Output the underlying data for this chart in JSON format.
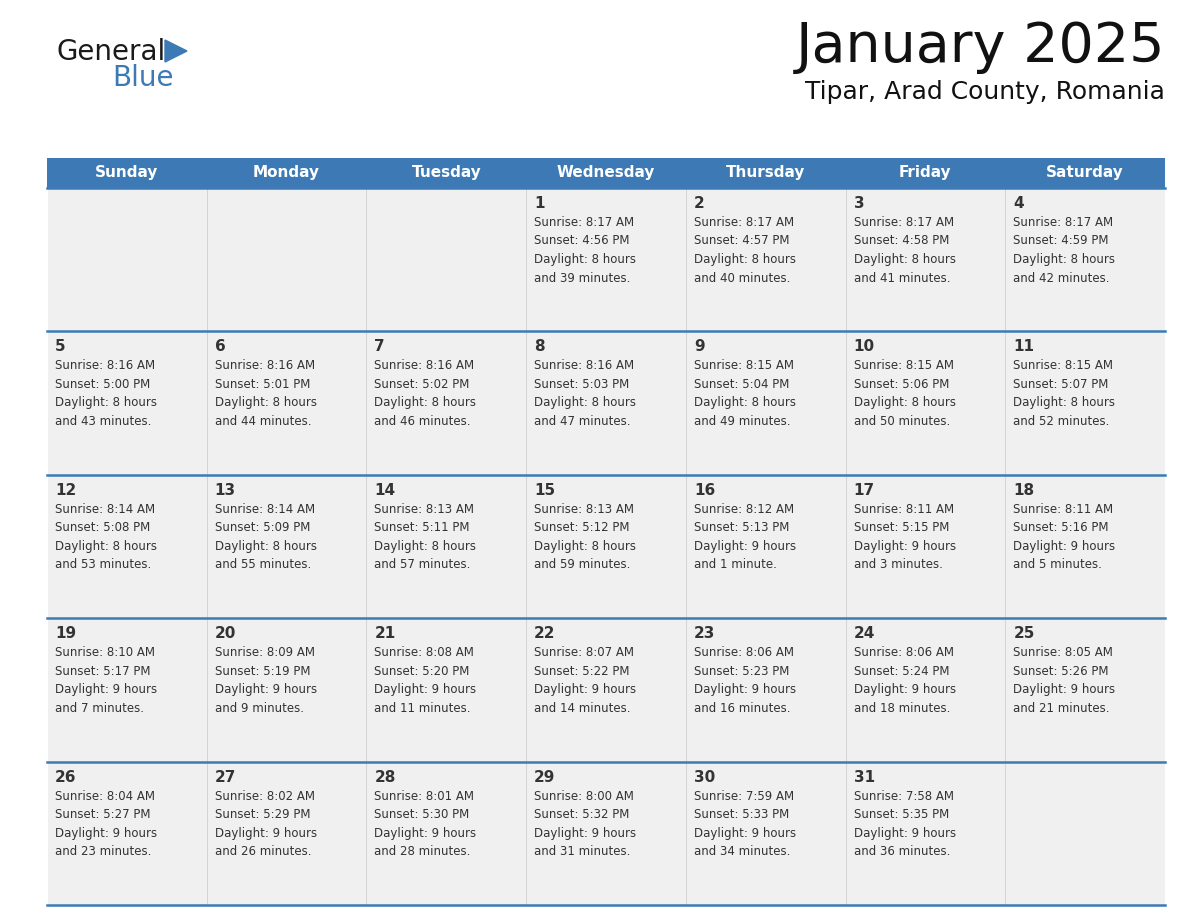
{
  "title": "January 2025",
  "subtitle": "Tipar, Arad County, Romania",
  "days_of_week": [
    "Sunday",
    "Monday",
    "Tuesday",
    "Wednesday",
    "Thursday",
    "Friday",
    "Saturday"
  ],
  "header_bg": "#3d7ab5",
  "header_text": "#ffffff",
  "cell_bg_light": "#f0f0f0",
  "grid_line_color": "#3d7ab5",
  "text_color": "#333333",
  "title_color": "#111111",
  "logo_triangle_color": "#3d7ab5",
  "logo_text_general": "General",
  "logo_text_blue": "Blue",
  "calendar_data": [
    [
      {
        "day": null,
        "info": null
      },
      {
        "day": null,
        "info": null
      },
      {
        "day": null,
        "info": null
      },
      {
        "day": 1,
        "info": "Sunrise: 8:17 AM\nSunset: 4:56 PM\nDaylight: 8 hours\nand 39 minutes."
      },
      {
        "day": 2,
        "info": "Sunrise: 8:17 AM\nSunset: 4:57 PM\nDaylight: 8 hours\nand 40 minutes."
      },
      {
        "day": 3,
        "info": "Sunrise: 8:17 AM\nSunset: 4:58 PM\nDaylight: 8 hours\nand 41 minutes."
      },
      {
        "day": 4,
        "info": "Sunrise: 8:17 AM\nSunset: 4:59 PM\nDaylight: 8 hours\nand 42 minutes."
      }
    ],
    [
      {
        "day": 5,
        "info": "Sunrise: 8:16 AM\nSunset: 5:00 PM\nDaylight: 8 hours\nand 43 minutes."
      },
      {
        "day": 6,
        "info": "Sunrise: 8:16 AM\nSunset: 5:01 PM\nDaylight: 8 hours\nand 44 minutes."
      },
      {
        "day": 7,
        "info": "Sunrise: 8:16 AM\nSunset: 5:02 PM\nDaylight: 8 hours\nand 46 minutes."
      },
      {
        "day": 8,
        "info": "Sunrise: 8:16 AM\nSunset: 5:03 PM\nDaylight: 8 hours\nand 47 minutes."
      },
      {
        "day": 9,
        "info": "Sunrise: 8:15 AM\nSunset: 5:04 PM\nDaylight: 8 hours\nand 49 minutes."
      },
      {
        "day": 10,
        "info": "Sunrise: 8:15 AM\nSunset: 5:06 PM\nDaylight: 8 hours\nand 50 minutes."
      },
      {
        "day": 11,
        "info": "Sunrise: 8:15 AM\nSunset: 5:07 PM\nDaylight: 8 hours\nand 52 minutes."
      }
    ],
    [
      {
        "day": 12,
        "info": "Sunrise: 8:14 AM\nSunset: 5:08 PM\nDaylight: 8 hours\nand 53 minutes."
      },
      {
        "day": 13,
        "info": "Sunrise: 8:14 AM\nSunset: 5:09 PM\nDaylight: 8 hours\nand 55 minutes."
      },
      {
        "day": 14,
        "info": "Sunrise: 8:13 AM\nSunset: 5:11 PM\nDaylight: 8 hours\nand 57 minutes."
      },
      {
        "day": 15,
        "info": "Sunrise: 8:13 AM\nSunset: 5:12 PM\nDaylight: 8 hours\nand 59 minutes."
      },
      {
        "day": 16,
        "info": "Sunrise: 8:12 AM\nSunset: 5:13 PM\nDaylight: 9 hours\nand 1 minute."
      },
      {
        "day": 17,
        "info": "Sunrise: 8:11 AM\nSunset: 5:15 PM\nDaylight: 9 hours\nand 3 minutes."
      },
      {
        "day": 18,
        "info": "Sunrise: 8:11 AM\nSunset: 5:16 PM\nDaylight: 9 hours\nand 5 minutes."
      }
    ],
    [
      {
        "day": 19,
        "info": "Sunrise: 8:10 AM\nSunset: 5:17 PM\nDaylight: 9 hours\nand 7 minutes."
      },
      {
        "day": 20,
        "info": "Sunrise: 8:09 AM\nSunset: 5:19 PM\nDaylight: 9 hours\nand 9 minutes."
      },
      {
        "day": 21,
        "info": "Sunrise: 8:08 AM\nSunset: 5:20 PM\nDaylight: 9 hours\nand 11 minutes."
      },
      {
        "day": 22,
        "info": "Sunrise: 8:07 AM\nSunset: 5:22 PM\nDaylight: 9 hours\nand 14 minutes."
      },
      {
        "day": 23,
        "info": "Sunrise: 8:06 AM\nSunset: 5:23 PM\nDaylight: 9 hours\nand 16 minutes."
      },
      {
        "day": 24,
        "info": "Sunrise: 8:06 AM\nSunset: 5:24 PM\nDaylight: 9 hours\nand 18 minutes."
      },
      {
        "day": 25,
        "info": "Sunrise: 8:05 AM\nSunset: 5:26 PM\nDaylight: 9 hours\nand 21 minutes."
      }
    ],
    [
      {
        "day": 26,
        "info": "Sunrise: 8:04 AM\nSunset: 5:27 PM\nDaylight: 9 hours\nand 23 minutes."
      },
      {
        "day": 27,
        "info": "Sunrise: 8:02 AM\nSunset: 5:29 PM\nDaylight: 9 hours\nand 26 minutes."
      },
      {
        "day": 28,
        "info": "Sunrise: 8:01 AM\nSunset: 5:30 PM\nDaylight: 9 hours\nand 28 minutes."
      },
      {
        "day": 29,
        "info": "Sunrise: 8:00 AM\nSunset: 5:32 PM\nDaylight: 9 hours\nand 31 minutes."
      },
      {
        "day": 30,
        "info": "Sunrise: 7:59 AM\nSunset: 5:33 PM\nDaylight: 9 hours\nand 34 minutes."
      },
      {
        "day": 31,
        "info": "Sunrise: 7:58 AM\nSunset: 5:35 PM\nDaylight: 9 hours\nand 36 minutes."
      },
      {
        "day": null,
        "info": null
      }
    ]
  ]
}
